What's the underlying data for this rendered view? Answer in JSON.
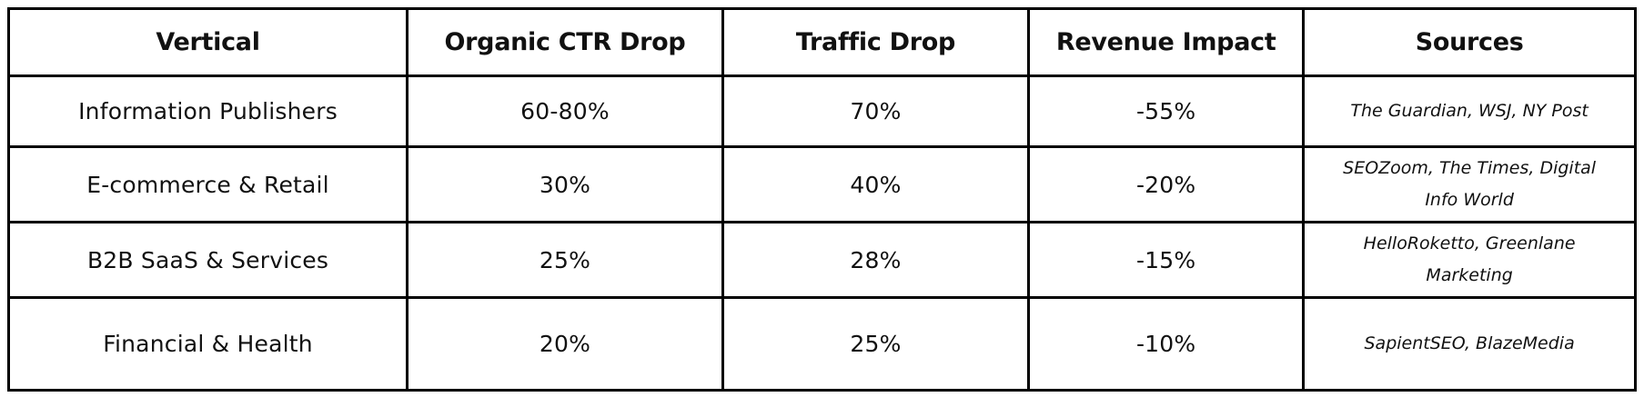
{
  "table": {
    "columns": [
      {
        "label": "Vertical"
      },
      {
        "label": "Organic CTR Drop"
      },
      {
        "label": "Traffic Drop"
      },
      {
        "label": "Revenue Impact"
      },
      {
        "label": "Sources"
      }
    ],
    "rows": [
      {
        "vertical": "Information Publishers",
        "organic_ctr_drop": "60-80%",
        "traffic_drop": "70%",
        "revenue_impact": "-55%",
        "sources": "The Guardian, WSJ, NY Post",
        "sources_lines": [
          "The Guardian, WSJ, NY Post"
        ]
      },
      {
        "vertical": "E-commerce & Retail",
        "organic_ctr_drop": "30%",
        "traffic_drop": "40%",
        "revenue_impact": "-20%",
        "sources": "SEOZoom, The Times, Digital Info World",
        "sources_lines": [
          "SEOZoom, The Times, Digital",
          "Info World"
        ]
      },
      {
        "vertical": "B2B SaaS & Services",
        "organic_ctr_drop": "25%",
        "traffic_drop": "28%",
        "revenue_impact": "-15%",
        "sources": "HelloRoketto, Greenlane Marketing",
        "sources_lines": [
          "HelloRoketto, Greenlane",
          "Marketing"
        ]
      },
      {
        "vertical": "Financial & Health",
        "organic_ctr_drop": "20%",
        "traffic_drop": "25%",
        "revenue_impact": "-10%",
        "sources": "SapientSEO, BlazeMedia",
        "sources_lines": [
          "SapientSEO, BlazeMedia"
        ]
      }
    ],
    "colors": {
      "border": "#000000",
      "text": "#111111",
      "background": "#ffffff"
    }
  }
}
